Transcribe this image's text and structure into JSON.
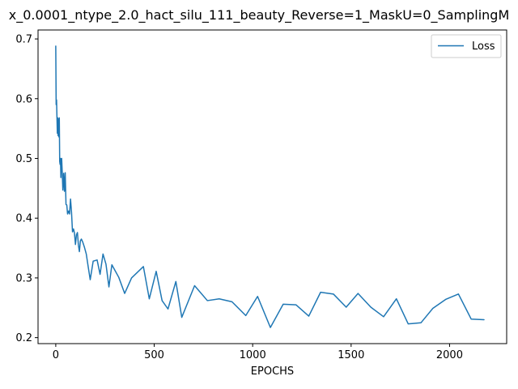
{
  "chart_data": {
    "type": "line",
    "title": "x_0.0001_ntype_2.0_hact_silu_111_beauty_Reverse=1_MaskU=0_SamplingM",
    "xlabel": "EPOCHS",
    "ylabel": "",
    "xlim": [
      -90,
      2290
    ],
    "ylim": [
      0.19,
      0.715
    ],
    "xticks": [
      0,
      500,
      1000,
      1500,
      2000
    ],
    "yticks": [
      0.2,
      0.3,
      0.4,
      0.5,
      0.6,
      0.7
    ],
    "ytick_labels": [
      "0.2",
      "0.3",
      "0.4",
      "0.5",
      "0.6",
      "0.7"
    ],
    "grid": false,
    "legend_position": "top-right",
    "series": [
      {
        "name": "Loss",
        "color": "#1f77b4",
        "x": [
          0,
          2,
          4,
          6,
          8,
          10,
          12,
          14,
          16,
          18,
          20,
          22,
          24,
          26,
          28,
          30,
          33,
          36,
          40,
          44,
          48,
          52,
          56,
          60,
          65,
          70,
          75,
          80,
          85,
          90,
          95,
          100,
          105,
          110,
          115,
          120,
          125,
          130,
          137,
          145,
          155,
          165,
          175,
          190,
          210,
          225,
          240,
          255,
          270,
          285,
          300,
          320,
          350,
          385,
          445,
          475,
          510,
          540,
          570,
          610,
          640,
          705,
          770,
          830,
          895,
          965,
          1025,
          1090,
          1155,
          1220,
          1285,
          1345,
          1410,
          1475,
          1535,
          1600,
          1665,
          1730,
          1790,
          1855,
          1915,
          1980,
          2045,
          2110,
          2175
        ],
        "y": [
          0.688,
          0.59,
          0.598,
          0.57,
          0.542,
          0.568,
          0.538,
          0.566,
          0.536,
          0.568,
          0.495,
          0.49,
          0.5,
          0.468,
          0.498,
          0.5,
          0.476,
          0.447,
          0.475,
          0.445,
          0.476,
          0.423,
          0.422,
          0.407,
          0.412,
          0.407,
          0.432,
          0.41,
          0.377,
          0.382,
          0.375,
          0.356,
          0.372,
          0.376,
          0.355,
          0.344,
          0.362,
          0.365,
          0.36,
          0.352,
          0.34,
          0.318,
          0.297,
          0.328,
          0.33,
          0.306,
          0.34,
          0.323,
          0.285,
          0.322,
          0.313,
          0.301,
          0.274,
          0.3,
          0.319,
          0.265,
          0.311,
          0.262,
          0.248,
          0.294,
          0.234,
          0.287,
          0.262,
          0.265,
          0.26,
          0.237,
          0.269,
          0.217,
          0.256,
          0.255,
          0.236,
          0.276,
          0.273,
          0.251,
          0.274,
          0.251,
          0.235,
          0.265,
          0.223,
          0.225,
          0.249,
          0.264,
          0.273,
          0.231,
          0.23
        ]
      }
    ]
  }
}
